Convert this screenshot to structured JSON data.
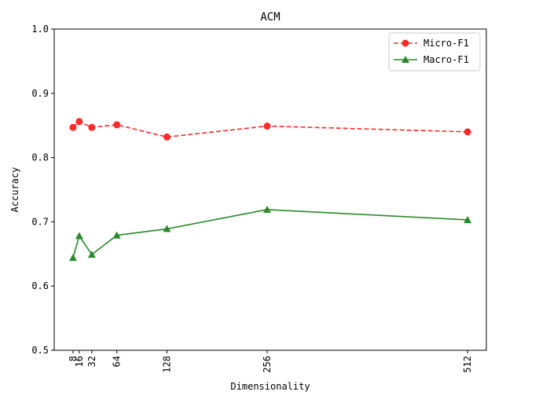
{
  "chart_data": {
    "type": "line",
    "title": "ACM",
    "xlabel": "Dimensionality",
    "ylabel": "Accuracy",
    "x": [
      8,
      16,
      32,
      64,
      128,
      256,
      512
    ],
    "xticks": [
      "8",
      "16",
      "32",
      "64",
      "128",
      "256",
      "512"
    ],
    "xlim": [
      -16,
      536
    ],
    "ylim": [
      0.5,
      1.0
    ],
    "yticks": [
      "0.5",
      "0.6",
      "0.7",
      "0.8",
      "0.9",
      "1.0"
    ],
    "grid": false,
    "legend_position": "top-right",
    "series": [
      {
        "name": "Micro-F1",
        "values": [
          0.847,
          0.856,
          0.847,
          0.851,
          0.832,
          0.849,
          0.84
        ],
        "color": "#ff2a2a",
        "line_style": "dashed",
        "marker": "circle"
      },
      {
        "name": "Macro-F1",
        "values": [
          0.644,
          0.678,
          0.649,
          0.679,
          0.689,
          0.719,
          0.703
        ],
        "color": "#2a8a2a",
        "line_style": "solid",
        "marker": "triangle"
      }
    ]
  }
}
